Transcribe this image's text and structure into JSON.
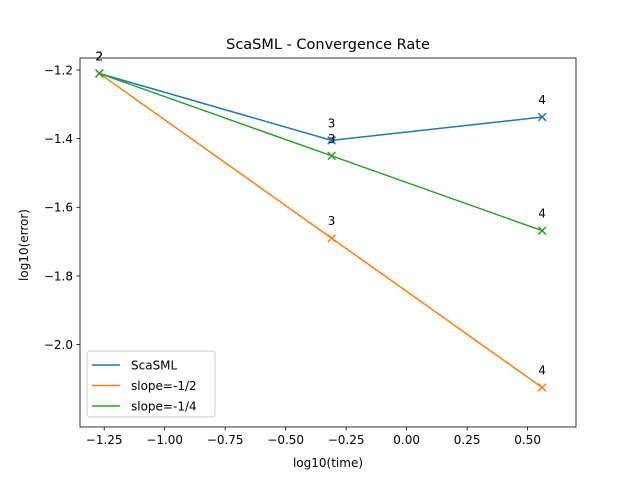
{
  "chart_data": {
    "type": "line",
    "title": "ScaSML - Convergence Rate",
    "xlabel": "log10(time)",
    "ylabel": "log10(error)",
    "xlim": [
      -1.35,
      0.7
    ],
    "ylim": [
      -2.24,
      -1.165
    ],
    "xticks": [
      -1.25,
      -1.0,
      -0.75,
      -0.5,
      -0.25,
      0.0,
      0.25,
      0.5
    ],
    "xtick_labels": [
      "−1.25",
      "−1.00",
      "−0.75",
      "−0.50",
      "−0.25",
      "0.00",
      "0.25",
      "0.50"
    ],
    "yticks": [
      -1.2,
      -1.4,
      -1.6,
      -1.8,
      -2.0
    ],
    "ytick_labels": [
      "−1.2",
      "−1.4",
      "−1.6",
      "−1.8",
      "−2.0"
    ],
    "grid": false,
    "legend_position": "lower-left",
    "x": [
      -1.27,
      -0.31,
      0.56
    ],
    "point_labels": [
      "2",
      "3",
      "4"
    ],
    "series": [
      {
        "name": "ScaSML",
        "color": "#1f77b4",
        "values": [
          -1.21,
          -1.405,
          -1.337
        ]
      },
      {
        "name": "slope=-1/2",
        "color": "#ff7f0e",
        "values": [
          -1.21,
          -1.69,
          -2.125
        ]
      },
      {
        "name": "slope=-1/4",
        "color": "#2ca02c",
        "values": [
          -1.21,
          -1.45,
          -1.668
        ]
      }
    ]
  }
}
